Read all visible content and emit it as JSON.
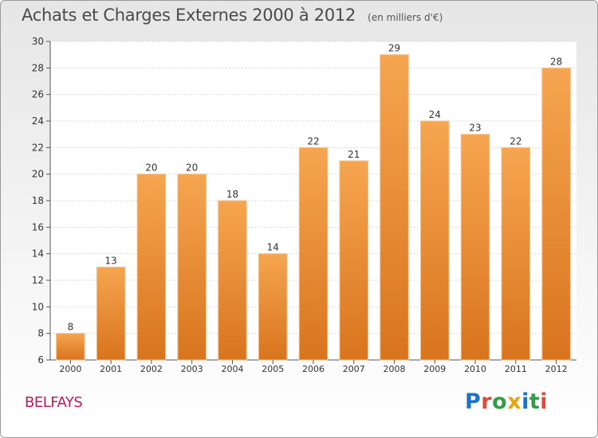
{
  "header": {
    "title": "Achats et Charges Externes 2000 à 2012",
    "subtitle": "(en milliers d'€)"
  },
  "footer": {
    "commune": "BELFAYS",
    "logo_text": "Proxiti"
  },
  "colors": {
    "bar_light": "#f6a550",
    "bar_dark": "#d9741e",
    "commune_text": "#c2185b",
    "logo_letters": [
      "#1a73c9",
      "#e0493a",
      "#2f9e44",
      "#e8a50f",
      "#1a73c9",
      "#2f9e44",
      "#e0493a"
    ]
  },
  "chart_data": {
    "type": "bar",
    "title": "Achats et Charges Externes 2000 à 2012",
    "subtitle": "(en milliers d'€)",
    "categories": [
      "2000",
      "2001",
      "2002",
      "2003",
      "2004",
      "2005",
      "2006",
      "2007",
      "2008",
      "2009",
      "2010",
      "2011",
      "2012"
    ],
    "values": [
      8,
      13,
      20,
      20,
      18,
      14,
      22,
      21,
      29,
      24,
      23,
      22,
      28
    ],
    "ylim": [
      6,
      30
    ],
    "yticks": [
      6,
      8,
      10,
      12,
      14,
      16,
      18,
      20,
      22,
      24,
      26,
      28,
      30
    ],
    "grid": true,
    "data_labels": true
  }
}
